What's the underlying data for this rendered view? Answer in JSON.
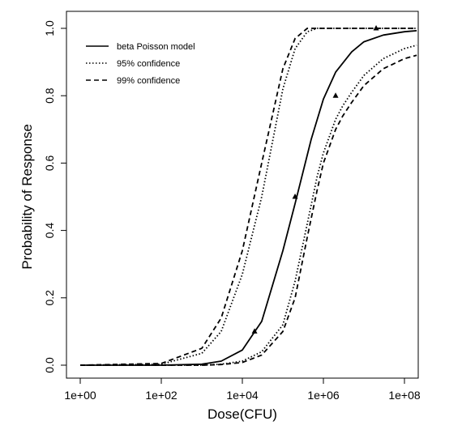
{
  "chart_data": {
    "type": "line",
    "title": "",
    "xlabel": "Dose(CFU)",
    "ylabel": "Probability of Response",
    "x_scale": "log10",
    "xlim": [
      1,
      200000000
    ],
    "ylim": [
      0,
      1
    ],
    "x_ticks": [
      1,
      100,
      10000,
      1000000,
      100000000
    ],
    "x_tick_labels": [
      "1e+00",
      "1e+02",
      "1e+04",
      "1e+06",
      "1e+08"
    ],
    "y_ticks": [
      0,
      0.2,
      0.4,
      0.6,
      0.8,
      1
    ],
    "y_tick_labels": [
      "0.0",
      "0.2",
      "0.4",
      "0.6",
      "0.8",
      "1.0"
    ],
    "grid": false,
    "legend_position": "top-left",
    "series": [
      {
        "name": "beta Poisson model",
        "line_style": "solid",
        "color": "#000000",
        "x": [
          1,
          100,
          1000,
          3000,
          10000,
          30000,
          100000,
          200000,
          500000,
          1000000,
          2000000,
          5000000,
          10000000,
          30000000,
          100000000,
          200000000
        ],
        "y": [
          0.0,
          0.0,
          0.003,
          0.012,
          0.045,
          0.13,
          0.34,
          0.48,
          0.67,
          0.79,
          0.87,
          0.93,
          0.96,
          0.98,
          0.99,
          0.993
        ]
      },
      {
        "name": "95% confidence",
        "line_style": "dotted",
        "color": "#000000",
        "x": [
          1,
          100,
          1000,
          3000,
          10000,
          30000,
          100000,
          200000,
          400000,
          700000,
          1000000,
          2000000,
          3000000,
          5000000,
          10000000,
          30000000,
          100000000,
          200000000
        ],
        "y": [
          0.0,
          0.003,
          0.035,
          0.1,
          0.27,
          0.5,
          0.82,
          0.94,
          0.99,
          1.0,
          1.0,
          1.0,
          1.0,
          1.0,
          1.0,
          1.0,
          1.0,
          1.0
        ],
        "y_lower": [
          0.0,
          0.0,
          0.0,
          0.003,
          0.012,
          0.04,
          0.12,
          0.25,
          0.42,
          0.56,
          0.63,
          0.73,
          0.77,
          0.81,
          0.86,
          0.91,
          0.94,
          0.95
        ]
      },
      {
        "name": "99% confidence",
        "line_style": "dashed",
        "color": "#000000",
        "x": [
          1,
          100,
          1000,
          3000,
          10000,
          30000,
          100000,
          200000,
          400000,
          700000,
          1000000,
          2000000,
          3000000,
          5000000,
          10000000,
          30000000,
          100000000,
          200000000
        ],
        "y": [
          0.0,
          0.005,
          0.05,
          0.14,
          0.34,
          0.6,
          0.88,
          0.97,
          1.0,
          1.0,
          1.0,
          1.0,
          1.0,
          1.0,
          1.0,
          1.0,
          1.0,
          1.0
        ],
        "y_lower": [
          0.0,
          0.0,
          0.0,
          0.002,
          0.008,
          0.03,
          0.1,
          0.2,
          0.38,
          0.52,
          0.6,
          0.7,
          0.74,
          0.78,
          0.83,
          0.88,
          0.91,
          0.92
        ]
      }
    ],
    "observed_points": {
      "marker": "triangle",
      "x": [
        20000,
        200000,
        2000000,
        20000000
      ],
      "y": [
        0.1,
        0.5,
        0.8,
        1.0
      ]
    }
  }
}
